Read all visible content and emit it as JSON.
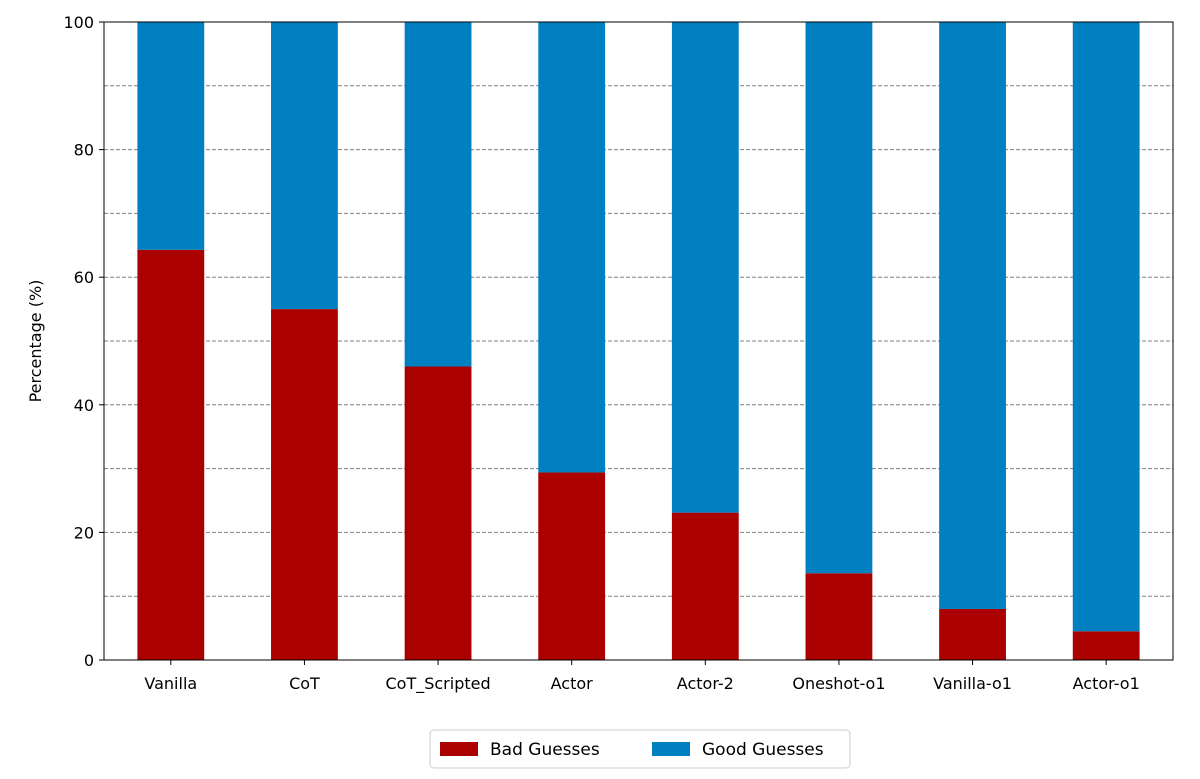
{
  "chart_data": {
    "type": "bar",
    "stacked": true,
    "categories": [
      "Vanilla",
      "CoT",
      "CoT_Scripted",
      "Actor",
      "Actor-2",
      "Oneshot-o1",
      "Vanilla-o1",
      "Actor-o1"
    ],
    "series": [
      {
        "name": "Bad Guesses",
        "color": "#AA0000",
        "values": [
          64.3,
          55.0,
          46.0,
          29.4,
          23.1,
          13.6,
          8.0,
          4.5
        ]
      },
      {
        "name": "Good Guesses",
        "color": "#0080C0",
        "values": [
          35.7,
          45.0,
          54.0,
          70.6,
          76.9,
          86.4,
          92.0,
          95.5
        ]
      }
    ],
    "ylabel": "Percentage (%)",
    "ylim": [
      0,
      100
    ],
    "yticks": [
      0,
      20,
      40,
      60,
      80,
      100
    ],
    "grid": "horizontal dashed every 10",
    "legend_placement": "bottom-center"
  }
}
